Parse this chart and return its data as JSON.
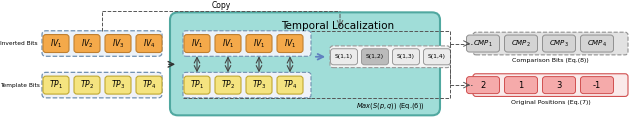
{
  "fig_width": 6.4,
  "fig_height": 1.21,
  "dpi": 100,
  "bg_color": "#ffffff",
  "copy_label": "Copy",
  "inverted_bits_label": "Inverted Bits",
  "template_bits_label": "Template Bits",
  "iv_labels": [
    "$IV_1$",
    "$IV_2$",
    "$IV_3$",
    "$IV_4$"
  ],
  "iv_color": "#F4A94A",
  "iv_edge_color": "#C08030",
  "tp_labels": [
    "$TP_1$",
    "$TP_2$",
    "$TP_3$",
    "$TP_4$"
  ],
  "tp_color": "#F5E480",
  "tp_edge_color": "#C0A830",
  "iv_copy_labels": [
    "$IV_1$",
    "$IV_1$",
    "$IV_1$",
    "$IV_1$"
  ],
  "tp_copy_labels": [
    "$TP_1$",
    "$TP_2$",
    "$TP_3$",
    "$TP_4$"
  ],
  "temporal_title": "Temporal Localization",
  "temporal_bg": "#A0DDD8",
  "temporal_border": "#50A8A0",
  "s_labels": [
    "S(1,1)",
    "S(1,2)",
    "S(1,3)",
    "S(1,4)"
  ],
  "s_highlight_idx": 1,
  "s_color": "#EBEBEB",
  "s_highlight_color": "#BBBBBB",
  "s_edge_color": "#999999",
  "max_label": "$Max(S(p,q))$ (Eq.(6))",
  "cmp_labels": [
    "$CMP_1$",
    "$CMP_2$",
    "$CMP_3$",
    "$CMP_4$"
  ],
  "cmp_color": "#D4D4D4",
  "cmp_edge_color": "#909090",
  "comparison_bits_label": "Comparison Bits (Eq.(8))",
  "orig_values": [
    "2",
    "1",
    "3",
    "-1"
  ],
  "orig_color": "#F5AAAA",
  "orig_edge_color": "#D05050",
  "original_positions_label": "Original Positions (Eq.(7))",
  "outer_iv_fill": "#ECF2F8",
  "outer_iv_edge": "#7090B0",
  "outer_tp_fill": "#F0F2F8",
  "outer_tp_edge": "#7090B0",
  "dashed_color": "#555555",
  "arrow_color": "#333333",
  "blue_arrow_color": "#6080C0"
}
